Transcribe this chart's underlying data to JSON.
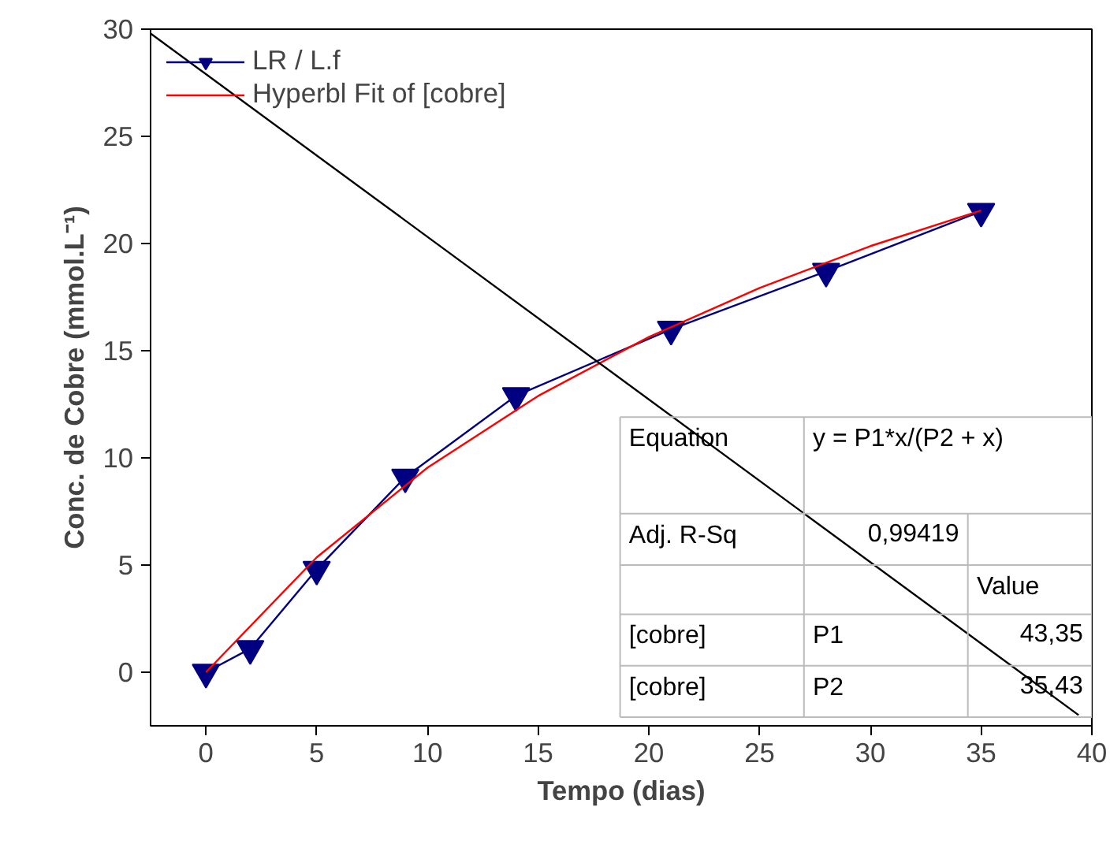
{
  "chart_data": {
    "type": "line",
    "xlabel": "Tempo (dias)",
    "ylabel": "Conc. de Cobre (mmol.L⁻¹)",
    "xlim": [
      -2.5,
      40
    ],
    "ylim": [
      -2.5,
      30
    ],
    "xticks": [
      0,
      5,
      10,
      15,
      20,
      25,
      30,
      35,
      40
    ],
    "yticks": [
      0,
      5,
      10,
      15,
      20,
      25,
      30
    ],
    "grid": false,
    "legend": "top left",
    "series": [
      {
        "name": "LR / L.f",
        "color": "#000080",
        "marker": "triangle",
        "x": [
          0,
          2,
          5,
          9,
          14,
          21,
          28,
          35
        ],
        "values": [
          0,
          1.1,
          4.8,
          9.1,
          12.9,
          16,
          18.7,
          21.5
        ]
      },
      {
        "name": "Hyperbl Fit of [cobre]",
        "color": "#ff0000",
        "marker": "none",
        "x": [
          0,
          5,
          10,
          15,
          20,
          25,
          30,
          35
        ],
        "values": [
          0,
          5.36,
          9.54,
          12.89,
          15.64,
          17.93,
          19.88,
          21.54
        ]
      },
      {
        "color": "#000000",
        "marker": "none",
        "x": [
          -2.5,
          39.4
        ],
        "values": [
          29.8,
          -2
        ]
      }
    ],
    "annotations": [
      "Equation",
      "y = P1*x/(P2 + x)",
      "Adj. R-Sq",
      "0,99419",
      "Value",
      "[cobre]",
      "P1",
      "43,35",
      "[cobre]",
      "P2",
      "35,43"
    ]
  }
}
